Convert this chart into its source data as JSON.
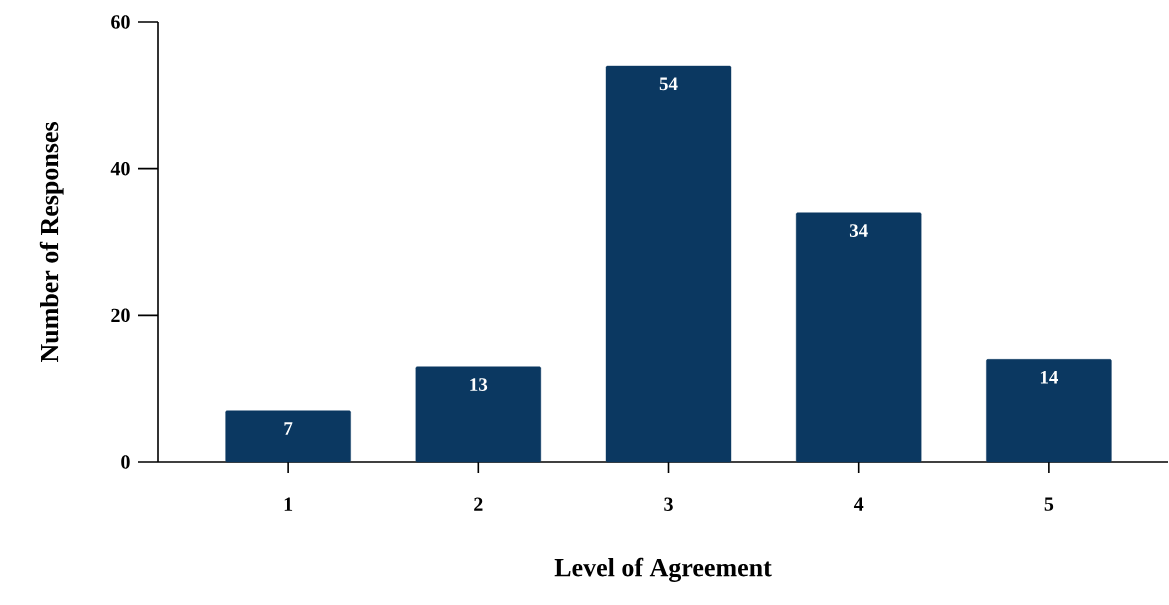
{
  "chart_data": {
    "type": "bar",
    "xlabel": "Level of Agreement",
    "ylabel": "Number of Responses",
    "categories": [
      "1",
      "2",
      "3",
      "4",
      "5"
    ],
    "values": [
      7,
      13,
      54,
      34,
      14
    ],
    "color": "#0b3861",
    "ylim": [
      0,
      60
    ],
    "yticks": [
      0,
      20,
      40,
      60
    ],
    "data_labels": true
  }
}
